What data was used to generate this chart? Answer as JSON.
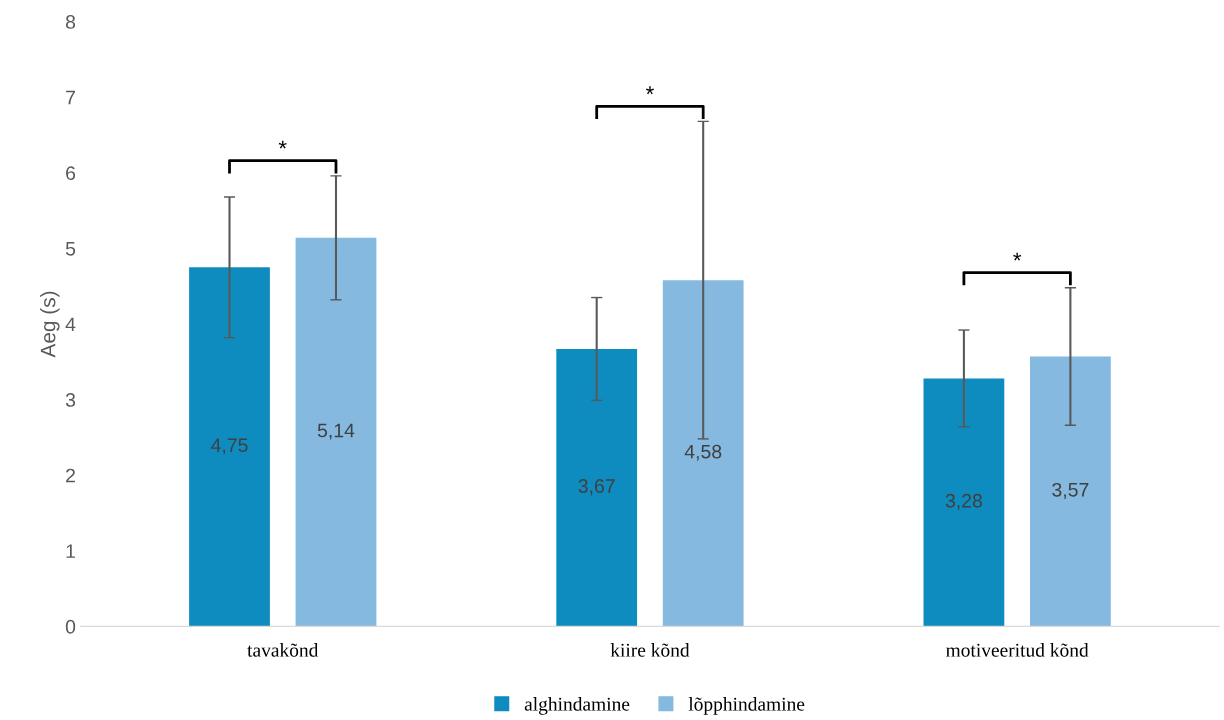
{
  "chart_data": {
    "type": "bar",
    "ylabel": "Aeg (s)",
    "categories": [
      "tavakõnd",
      "kiire kõnd",
      "motiveeritud kõnd"
    ],
    "series": [
      {
        "name": "alghindamine",
        "color": "#0e8bbf",
        "values": [
          4.75,
          3.67,
          3.28
        ],
        "errors": [
          0.93,
          0.68,
          0.64
        ],
        "value_labels": [
          "4,75",
          "3,67",
          "3,28"
        ]
      },
      {
        "name": "lõpphindamine",
        "color": "#85b9df",
        "values": [
          5.14,
          4.58,
          3.57
        ],
        "errors": [
          0.82,
          2.1,
          0.91
        ],
        "value_labels": [
          "5,14",
          "4,58",
          "3,57"
        ]
      }
    ],
    "annotations": [
      "*",
      "*",
      "*"
    ],
    "ylim": [
      0,
      8
    ],
    "yticks": [
      0,
      1,
      2,
      3,
      4,
      5,
      6,
      7,
      8
    ],
    "grid": false,
    "legend": "bottom"
  }
}
